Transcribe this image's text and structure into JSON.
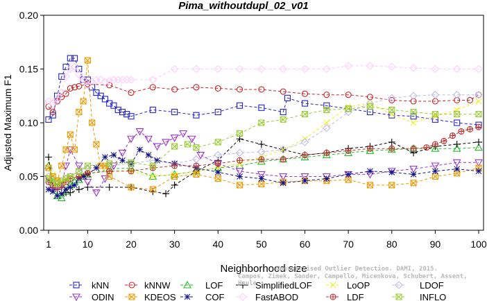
{
  "chart_data": {
    "type": "line",
    "title": "Pima_withoutdupl_02_v01",
    "xlabel": "Neighborhood size",
    "ylabel": "Adjusted Maximum F1",
    "xlim": [
      1,
      100
    ],
    "ylim": [
      0,
      0.2
    ],
    "x_ticks": [
      "1",
      "10",
      "20",
      "30",
      "40",
      "50",
      "60",
      "70",
      "80",
      "90",
      "100"
    ],
    "y_ticks": [
      "0.00",
      "0.05",
      "0.10",
      "0.15",
      "0.20"
    ],
    "grid": false,
    "legend_position": "bottom",
    "credit": [
      "Unsupervised Outlier Detection. DAMI, 2015.",
      "Campos, Zimek, Sander, Campello, Micenkova, Schubert, Assent, Houle"
    ],
    "series": [
      {
        "name": "kNN",
        "color": "#2222cc",
        "marker": "square",
        "x": [
          1,
          2,
          3,
          4,
          5,
          6,
          7,
          8,
          9,
          10,
          11,
          12,
          13,
          14,
          15,
          16,
          17,
          18,
          19,
          20,
          25,
          30,
          35,
          40,
          45,
          50,
          55,
          56,
          60,
          65,
          70,
          75,
          80,
          85,
          90,
          95,
          100
        ],
        "y": [
          0.103,
          0.107,
          0.125,
          0.143,
          0.152,
          0.16,
          0.16,
          0.15,
          0.14,
          0.14,
          0.133,
          0.128,
          0.125,
          0.122,
          0.118,
          0.116,
          0.112,
          0.11,
          0.108,
          0.106,
          0.112,
          0.11,
          0.107,
          0.11,
          0.116,
          0.114,
          0.11,
          0.123,
          0.118,
          0.116,
          0.113,
          0.11,
          0.107,
          0.106,
          0.103,
          0.1,
          0.098
        ]
      },
      {
        "name": "kNNW",
        "color": "#cc2222",
        "marker": "circle",
        "x": [
          1,
          2,
          3,
          4,
          5,
          6,
          7,
          8,
          10,
          15,
          20,
          25,
          30,
          35,
          40,
          45,
          50,
          55,
          60,
          65,
          70,
          75,
          80,
          85,
          90,
          95,
          98,
          100
        ],
        "y": [
          0.115,
          0.11,
          0.12,
          0.124,
          0.127,
          0.132,
          0.133,
          0.134,
          0.136,
          0.135,
          0.128,
          0.133,
          0.131,
          0.133,
          0.132,
          0.131,
          0.131,
          0.129,
          0.127,
          0.126,
          0.126,
          0.124,
          0.121,
          0.12,
          0.12,
          0.121,
          0.121,
          0.126
        ]
      },
      {
        "name": "LOF",
        "color": "#22bb22",
        "marker": "triangle",
        "x": [
          1,
          2,
          3,
          4,
          5,
          6,
          7,
          8,
          9,
          10,
          15,
          20,
          25,
          30,
          35,
          40,
          45,
          50,
          55,
          60,
          65,
          70,
          75,
          80,
          85,
          90,
          95,
          100
        ],
        "y": [
          0.06,
          0.045,
          0.032,
          0.03,
          0.036,
          0.042,
          0.045,
          0.047,
          0.05,
          0.052,
          0.057,
          0.058,
          0.05,
          0.052,
          0.055,
          0.058,
          0.06,
          0.064,
          0.066,
          0.068,
          0.07,
          0.072,
          0.074,
          0.075,
          0.076,
          0.076,
          0.076,
          0.077
        ]
      },
      {
        "name": "SimplifiedLOF",
        "color": "#000000",
        "marker": "plus",
        "x": [
          1,
          2,
          3,
          4,
          5,
          6,
          8,
          10,
          15,
          20,
          25,
          28,
          30,
          35,
          40,
          45,
          50,
          55,
          60,
          65,
          70,
          75,
          80,
          85,
          90,
          95,
          100
        ],
        "y": [
          0.068,
          0.04,
          0.038,
          0.04,
          0.035,
          0.035,
          0.038,
          0.04,
          0.04,
          0.04,
          0.036,
          0.034,
          0.042,
          0.055,
          0.065,
          0.085,
          0.08,
          0.075,
          0.07,
          0.072,
          0.076,
          0.078,
          0.082,
          0.072,
          0.078,
          0.08,
          0.082
        ]
      },
      {
        "name": "LoOP",
        "color": "#eeee22",
        "marker": "x",
        "x": [
          1,
          2,
          3,
          4,
          5,
          6,
          8,
          10,
          15,
          20,
          25,
          30,
          35,
          40,
          45,
          50,
          55,
          60,
          65,
          70,
          75,
          80,
          85,
          90,
          95,
          100
        ],
        "y": [
          0.05,
          0.052,
          0.048,
          0.046,
          0.047,
          0.05,
          0.051,
          0.053,
          0.055,
          0.055,
          0.05,
          0.052,
          0.055,
          0.058,
          0.062,
          0.068,
          0.075,
          0.085,
          0.1,
          0.115,
          0.118,
          0.108,
          0.1,
          0.106,
          0.112,
          0.12
        ]
      },
      {
        "name": "LDOF",
        "color": "#bbbbee",
        "marker": "diamond",
        "x": [
          1,
          2,
          3,
          4,
          5,
          6,
          8,
          10,
          15,
          20,
          25,
          30,
          35,
          40,
          45,
          50,
          55,
          60,
          65,
          70,
          75,
          80,
          85,
          90,
          95,
          100
        ],
        "y": [
          0.05,
          0.048,
          0.046,
          0.046,
          0.048,
          0.05,
          0.055,
          0.058,
          0.06,
          0.062,
          0.065,
          0.062,
          0.066,
          0.07,
          0.072,
          0.073,
          0.075,
          0.082,
          0.095,
          0.11,
          0.118,
          0.123,
          0.125,
          0.126,
          0.126,
          0.126
        ]
      },
      {
        "name": "ODIN",
        "color": "#9933cc",
        "marker": "triangle-down",
        "x": [
          1,
          2,
          3,
          4,
          5,
          6,
          8,
          10,
          12,
          14,
          16,
          18,
          20,
          22,
          24,
          26,
          28,
          30,
          32,
          34,
          36,
          40,
          45,
          50,
          55,
          60,
          65,
          70,
          75,
          80,
          85,
          90,
          95,
          100
        ],
        "y": [
          0.048,
          0.04,
          0.04,
          0.042,
          0.06,
          0.075,
          0.06,
          0.045,
          0.035,
          0.048,
          0.06,
          0.072,
          0.085,
          0.092,
          0.085,
          0.078,
          0.082,
          0.086,
          0.09,
          0.085,
          0.07,
          0.062,
          0.055,
          0.052,
          0.05,
          0.05,
          0.05,
          0.052,
          0.052,
          0.055,
          0.057,
          0.06,
          0.063,
          0.063
        ]
      },
      {
        "name": "KDEOS",
        "color": "#ee9900",
        "marker": "square-x",
        "x": [
          1,
          2,
          3,
          4,
          5,
          6,
          7,
          8,
          9,
          10,
          11,
          12,
          13,
          14,
          15,
          20,
          25,
          30,
          35,
          40,
          45,
          50,
          55,
          60,
          65,
          70,
          75,
          80,
          85,
          90,
          95,
          100
        ],
        "y": [
          0.058,
          0.05,
          0.046,
          0.06,
          0.075,
          0.089,
          0.075,
          0.11,
          0.12,
          0.158,
          0.1,
          0.08,
          0.06,
          0.06,
          0.05,
          0.04,
          0.038,
          0.05,
          0.052,
          0.048,
          0.042,
          0.043,
          0.045,
          0.046,
          0.046,
          0.047,
          0.042,
          0.042,
          0.044,
          0.05,
          0.053,
          0.058
        ]
      },
      {
        "name": "COF",
        "color": "#111188",
        "marker": "asterisk",
        "x": [
          1,
          2,
          3,
          4,
          5,
          6,
          7,
          8,
          9,
          10,
          12,
          14,
          16,
          18,
          20,
          22,
          24,
          26,
          30,
          35,
          40,
          45,
          50,
          55,
          60,
          65,
          70,
          75,
          80,
          85,
          90,
          95,
          100
        ],
        "y": [
          0.038,
          0.036,
          0.032,
          0.034,
          0.038,
          0.04,
          0.042,
          0.048,
          0.05,
          0.052,
          0.058,
          0.068,
          0.07,
          0.065,
          0.062,
          0.075,
          0.07,
          0.065,
          0.062,
          0.058,
          0.054,
          0.05,
          0.048,
          0.044,
          0.046,
          0.048,
          0.052,
          0.055,
          0.054,
          0.052,
          0.055,
          0.057,
          0.055
        ]
      },
      {
        "name": "FastABOD",
        "color": "#ffccff",
        "marker": "diamond",
        "x": [
          1,
          2,
          3,
          4,
          5,
          6,
          7,
          8,
          9,
          10,
          11,
          12,
          13,
          14,
          15,
          16,
          17,
          18,
          19,
          20,
          25,
          30,
          35,
          40,
          45,
          50,
          55,
          60,
          65,
          70,
          75,
          80,
          85,
          90,
          95,
          100
        ],
        "y": [
          0.12,
          0.118,
          0.122,
          0.128,
          0.143,
          0.15,
          0.152,
          0.145,
          0.14,
          0.135,
          0.138,
          0.14,
          0.14,
          0.138,
          0.139,
          0.14,
          0.14,
          0.14,
          0.14,
          0.14,
          0.14,
          0.15,
          0.15,
          0.15,
          0.15,
          0.15,
          0.15,
          0.15,
          0.15,
          0.153,
          0.153,
          0.152,
          0.151,
          0.15,
          0.15,
          0.15
        ]
      },
      {
        "name": "LDF",
        "color": "#bb3333",
        "marker": "circle-plus",
        "x": [
          1,
          2,
          3,
          4,
          5,
          6,
          8,
          10,
          15,
          20,
          25,
          30,
          35,
          40,
          45,
          50,
          55,
          60,
          65,
          70,
          75,
          80,
          85,
          88,
          90,
          92,
          94,
          96,
          98,
          100
        ],
        "y": [
          0.045,
          0.042,
          0.04,
          0.042,
          0.045,
          0.048,
          0.05,
          0.053,
          0.055,
          0.055,
          0.058,
          0.06,
          0.06,
          0.062,
          0.065,
          0.066,
          0.066,
          0.07,
          0.072,
          0.074,
          0.076,
          0.076,
          0.076,
          0.077,
          0.08,
          0.083,
          0.088,
          0.092,
          0.094,
          0.096
        ]
      },
      {
        "name": "INFLO",
        "color": "#99cc33",
        "marker": "square-x",
        "x": [
          1,
          2,
          3,
          4,
          5,
          6,
          8,
          10,
          15,
          20,
          25,
          30,
          33,
          35,
          40,
          45,
          50,
          55,
          60,
          65,
          70,
          75,
          80,
          85,
          90,
          95,
          100
        ],
        "y": [
          0.048,
          0.045,
          0.043,
          0.045,
          0.048,
          0.05,
          0.055,
          0.06,
          0.062,
          0.063,
          0.06,
          0.078,
          0.08,
          0.077,
          0.082,
          0.09,
          0.1,
          0.103,
          0.108,
          0.112,
          0.113,
          0.115,
          0.112,
          0.11,
          0.108,
          0.108,
          0.108
        ]
      }
    ]
  }
}
